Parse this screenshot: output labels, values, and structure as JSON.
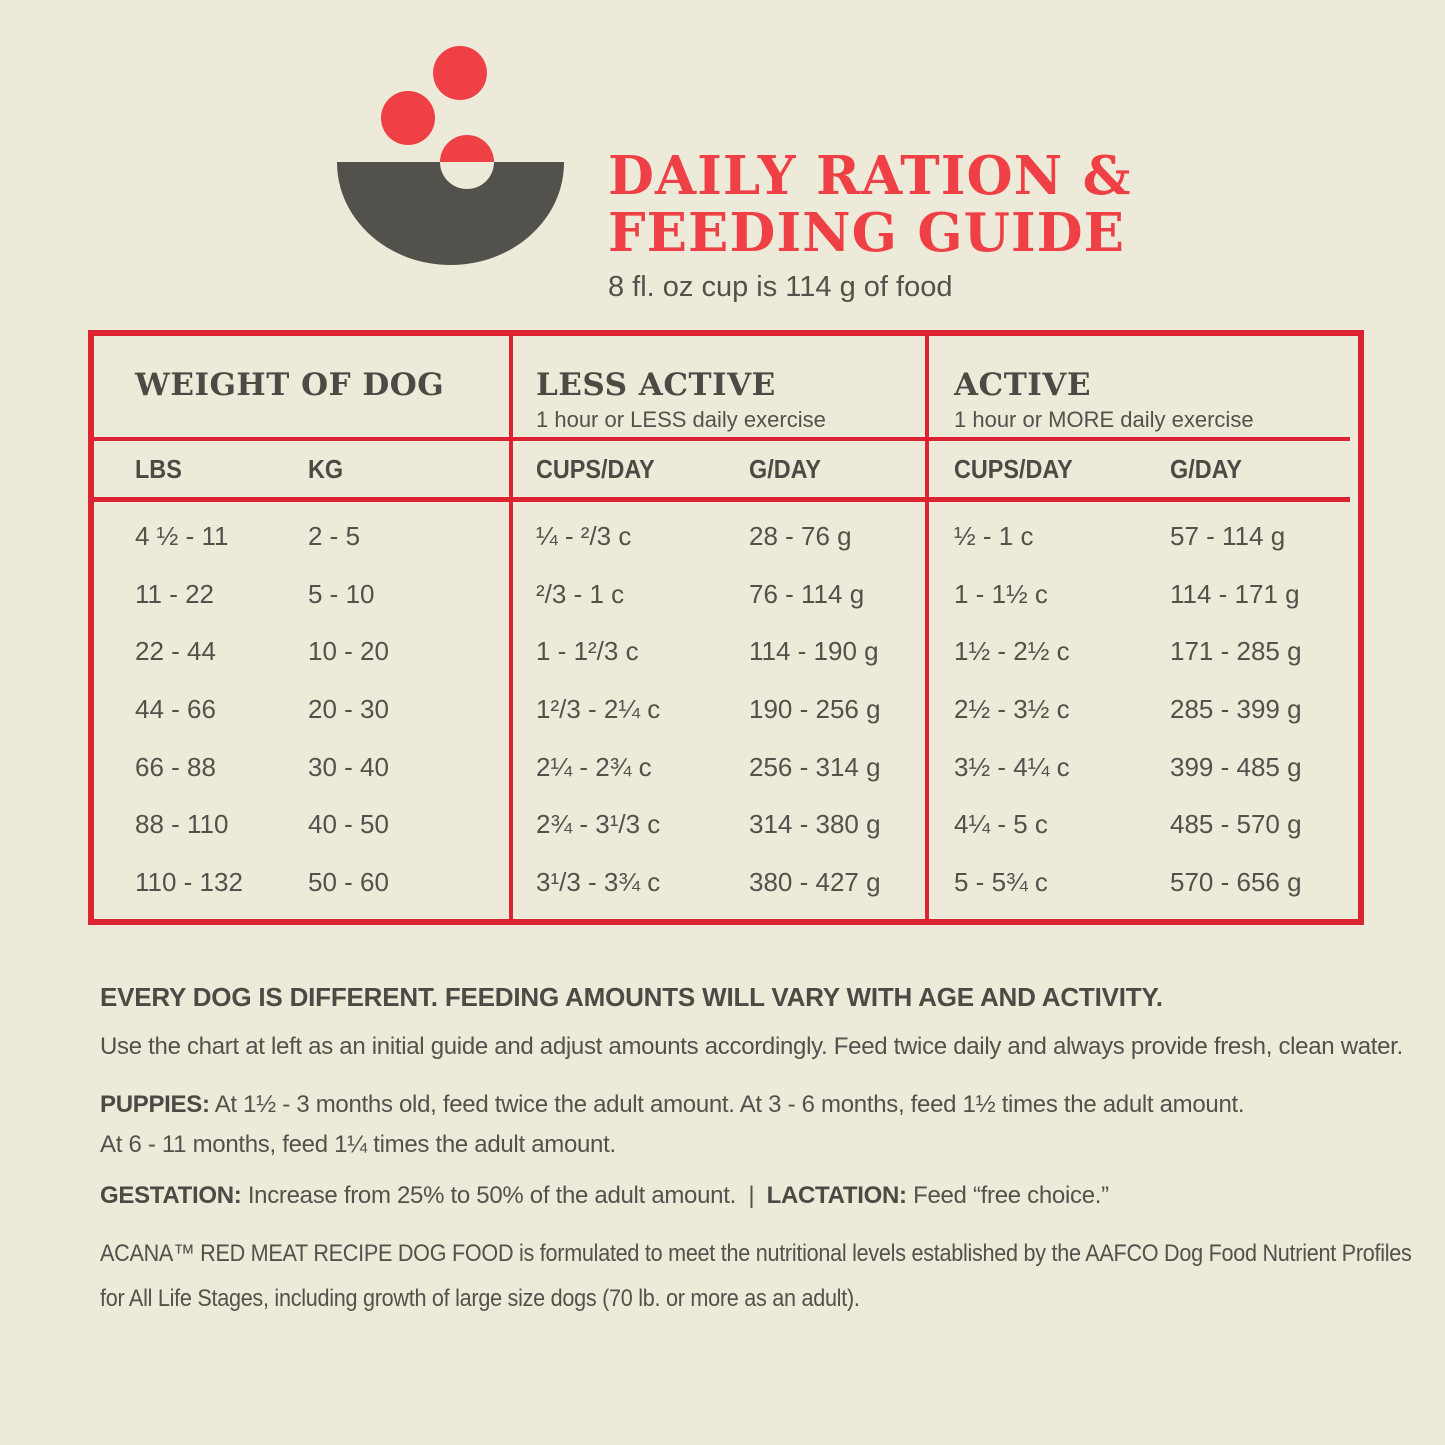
{
  "theme": {
    "red": "#EF4046",
    "border_red": "#DB2332",
    "text_dark": "#53514B",
    "text_darker": "#4B4A45",
    "background_cream": "#EDEAD9"
  },
  "header": {
    "icon": "bowl-with-kibble-icon",
    "title_line1": "DAILY RATION &",
    "title_line2": "FEEDING GUIDE",
    "subtitle": "8 fl. oz cup is 114 g of food"
  },
  "table": {
    "groups": [
      {
        "title": "WEIGHT OF DOG",
        "subtitle": "",
        "columns": [
          "LBS",
          "KG"
        ]
      },
      {
        "title": "LESS ACTIVE",
        "subtitle": "1 hour or LESS daily exercise",
        "columns": [
          "CUPS/DAY",
          "G/DAY"
        ]
      },
      {
        "title": "ACTIVE",
        "subtitle": "1 hour or MORE daily exercise",
        "columns": [
          "CUPS/DAY",
          "G/DAY"
        ]
      }
    ],
    "rows": [
      {
        "lbs": "4 ½ - 11",
        "kg": "2 - 5",
        "less_cups": "¼ - ²/3 c",
        "less_g": "28 - 76 g",
        "active_cups": "½ - 1 c",
        "active_g": "57 - 114 g"
      },
      {
        "lbs": "11 - 22",
        "kg": "5 - 10",
        "less_cups": "²/3 - 1 c",
        "less_g": "76 - 114 g",
        "active_cups": "1 - 1½ c",
        "active_g": "114 - 171 g"
      },
      {
        "lbs": "22 - 44",
        "kg": "10 - 20",
        "less_cups": "1 - 1²/3 c",
        "less_g": "114 - 190 g",
        "active_cups": "1½ - 2½ c",
        "active_g": "171 - 285 g"
      },
      {
        "lbs": "44 - 66",
        "kg": "20 - 30",
        "less_cups": "1²/3 - 2¼ c",
        "less_g": "190 - 256 g",
        "active_cups": "2½ - 3½ c",
        "active_g": "285 - 399 g"
      },
      {
        "lbs": "66 - 88",
        "kg": "30 - 40",
        "less_cups": "2¼ - 2¾ c",
        "less_g": "256 - 314 g",
        "active_cups": "3½ - 4¼ c",
        "active_g": "399 - 485 g"
      },
      {
        "lbs": "88 - 110",
        "kg": "40 - 50",
        "less_cups": "2¾ - 3¹/3 c",
        "less_g": "314 - 380 g",
        "active_cups": "4¼ - 5 c",
        "active_g": "485 - 570 g"
      },
      {
        "lbs": "110 - 132",
        "kg": "50 - 60",
        "less_cups": "3¹/3 - 3¾ c",
        "less_g": "380 - 427 g",
        "active_cups": "5 - 5¾ c",
        "active_g": "570 - 656 g"
      }
    ]
  },
  "notes": {
    "heading": "EVERY DOG IS DIFFERENT. FEEDING AMOUNTS WILL VARY WITH AGE AND ACTIVITY.",
    "intro": "Use the chart at left as an initial guide and adjust amounts accordingly. Feed twice daily and always provide fresh, clean water.",
    "puppies_label": "PUPPIES:",
    "puppies_line1": "At 1½ - 3 months old, feed twice the adult amount. At 3 - 6 months, feed 1½ times the adult amount.",
    "puppies_line2": "At 6 - 11 months, feed 1¼ times the adult amount.",
    "gestation_label": "GESTATION:",
    "gestation_text": "Increase from 25% to 50% of the adult amount.",
    "separator": "|",
    "lactation_label": "LACTATION:",
    "lactation_text": "Feed “free choice.”",
    "aafco_text": "ACANA™ RED MEAT RECIPE DOG FOOD is formulated to meet the nutritional levels established by the AAFCO Dog Food Nutrient Profiles for All Life Stages, including growth of large size dogs (70 lb. or more as an adult)."
  }
}
